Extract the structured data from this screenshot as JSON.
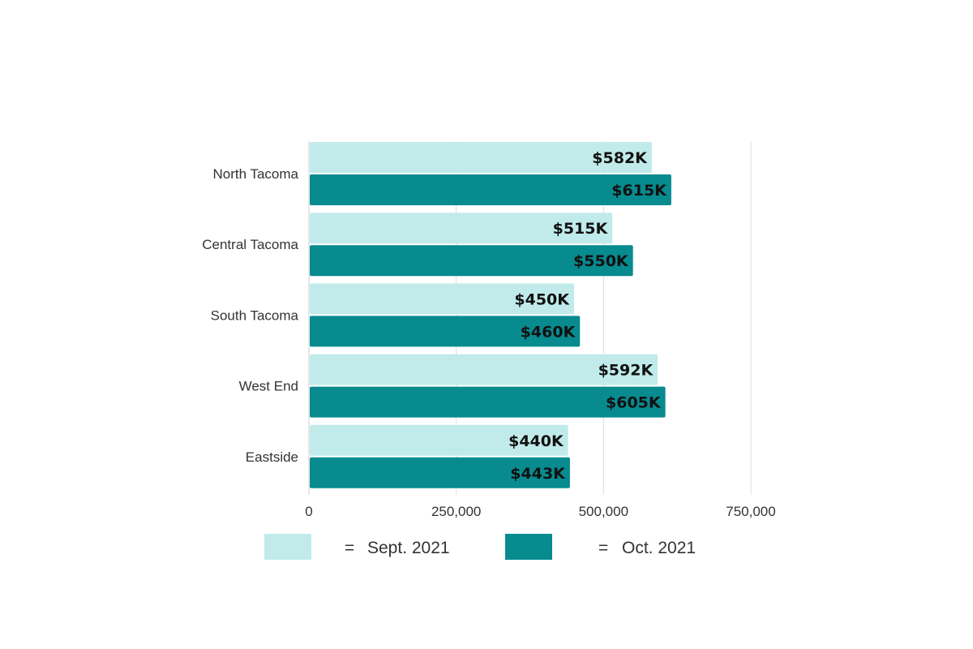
{
  "chart_data": {
    "type": "bar",
    "orientation": "horizontal",
    "categories": [
      "North Tacoma",
      "Central Tacoma",
      "South Tacoma",
      "West End",
      "Eastside"
    ],
    "series": [
      {
        "name": "Sept. 2021",
        "values": [
          582000,
          515000,
          450000,
          592000,
          440000
        ],
        "labels": [
          "$582K",
          "$515K",
          "$450K",
          "$592K",
          "$440K"
        ],
        "color": "#c1ebeb"
      },
      {
        "name": "Oct. 2021",
        "values": [
          615000,
          550000,
          460000,
          605000,
          443000
        ],
        "labels": [
          "$615K",
          "$550K",
          "$460K",
          "$605K",
          "$443K"
        ],
        "color": "#078b8f"
      }
    ],
    "x_ticks": [
      0,
      250000,
      500000,
      750000
    ],
    "x_tick_labels": [
      "0",
      "250,000",
      "500,000",
      "750,000"
    ],
    "xlim": [
      0,
      750000
    ],
    "grid": true,
    "legend_position": "bottom",
    "legend_separator": "="
  }
}
